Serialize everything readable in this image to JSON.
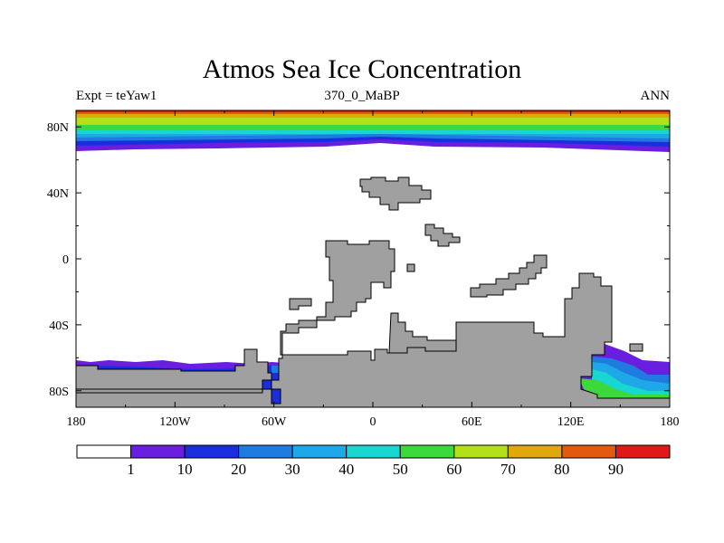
{
  "title": "Atmos Sea Ice Concentration",
  "subtitle_left": "Expt = teYaw1",
  "subtitle_center": "370_0_MaBP",
  "subtitle_right": "ANN",
  "colors": {
    "land": "#a0a0a0",
    "ocean": "#ffffff",
    "levels": [
      "#ffffff",
      "#6a1ee0",
      "#1a2ee0",
      "#1f7be0",
      "#1fa8e8",
      "#18d6d0",
      "#3cd83c",
      "#b4e01a",
      "#e0a80a",
      "#e05a10",
      "#e01818"
    ]
  },
  "axes": {
    "x_ticks": [
      "180",
      "120W",
      "60W",
      "0",
      "60E",
      "120E",
      "180"
    ],
    "y_ticks": [
      "80N",
      "40N",
      "0",
      "40S",
      "80S"
    ]
  },
  "colorbar": {
    "labels": [
      "1",
      "10",
      "20",
      "30",
      "40",
      "50",
      "60",
      "70",
      "80",
      "90"
    ]
  },
  "chart_data": {
    "type": "heatmap",
    "title": "Atmos Sea Ice Concentration",
    "variable": "Sea Ice Concentration",
    "xlim": [
      -180,
      180
    ],
    "ylim": [
      -90,
      90
    ],
    "x_ticks": [
      -180,
      -120,
      -60,
      0,
      60,
      120,
      180
    ],
    "y_ticks": [
      80,
      40,
      0,
      -40,
      -80
    ],
    "contour_levels": [
      1,
      10,
      20,
      30,
      40,
      50,
      60,
      70,
      80,
      90
    ],
    "north_ice_bands": [
      {
        "level": 1,
        "lat_edge": 66
      },
      {
        "level": 10,
        "lat_edge": 69
      },
      {
        "level": 20,
        "lat_edge": 71
      },
      {
        "level": 30,
        "lat_edge": 73
      },
      {
        "level": 40,
        "lat_edge": 75
      },
      {
        "level": 50,
        "lat_edge": 77
      },
      {
        "level": 60,
        "lat_edge": 80
      },
      {
        "level": 70,
        "lat_edge": 84
      },
      {
        "level": 80,
        "lat_edge": 87
      },
      {
        "level": 90,
        "lat_edge": 89
      }
    ]
  }
}
